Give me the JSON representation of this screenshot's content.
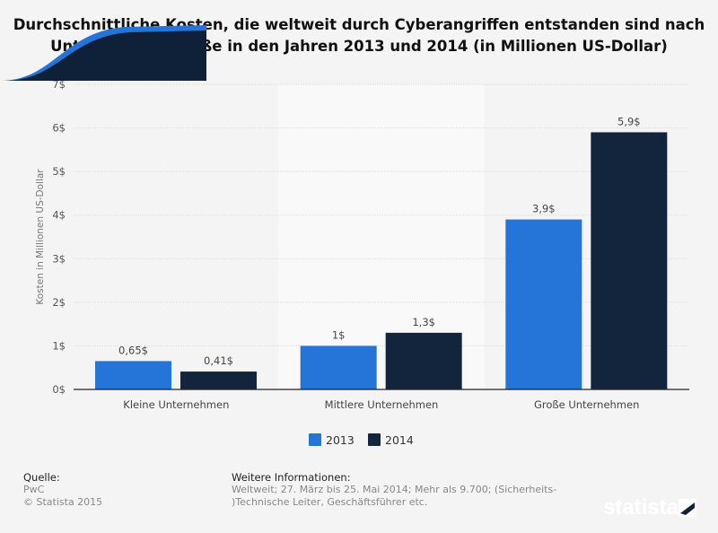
{
  "chart_data": {
    "type": "bar",
    "title": "Durchschnittliche Kosten, die weltweit durch Cyberangriffen entstanden sind nach Unternehmensgröße in den Jahren 2013 und 2014 (in Millionen US-Dollar)",
    "ylabel": "Kosten in Millionen US-Dollar",
    "xlabel": "",
    "ylim": [
      0,
      7
    ],
    "yticks": [
      "0$",
      "1$",
      "2$",
      "3$",
      "4$",
      "5$",
      "6$",
      "7$"
    ],
    "categories": [
      "Kleine Unternehmen",
      "Mittlere Unternehmen",
      "Große Unternehmen"
    ],
    "series": [
      {
        "name": "2013",
        "values": [
          0.65,
          1,
          3.9
        ],
        "labels": [
          "0,65$",
          "1$",
          "3,9$"
        ],
        "color": "#2574d8"
      },
      {
        "name": "2014",
        "values": [
          0.41,
          1.3,
          5.9
        ],
        "labels": [
          "0,41$",
          "1,3$",
          "5,9$"
        ],
        "color": "#12253d"
      }
    ],
    "grid": true,
    "legend": "bottom-center"
  },
  "footer": {
    "source_heading": "Quelle:",
    "source": "PwC",
    "copyright": "© Statista 2015",
    "info_heading": "Weitere Informationen:",
    "info_line1": "Weltweit; 27. März bis 25. Mai 2014; Mehr als 9.700; (Sicherheits-",
    "info_line2": ")Technische Leiter, Geschäftsführer etc.",
    "logo": "statista"
  }
}
